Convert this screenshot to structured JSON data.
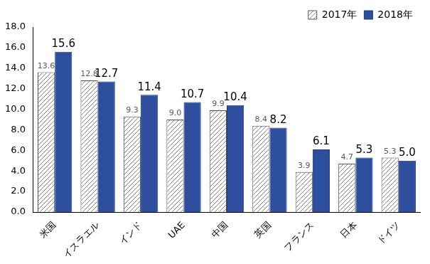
{
  "chart_data": {
    "type": "bar",
    "categories": [
      "米国",
      "イスラエル",
      "インド",
      "UAE",
      "中国",
      "英国",
      "フランス",
      "日本",
      "ドイツ"
    ],
    "series": [
      {
        "name": "2017年",
        "color": "#ffffff",
        "values": [
          13.6,
          12.8,
          9.3,
          9.0,
          9.9,
          8.4,
          3.9,
          4.7,
          5.3
        ],
        "value_labels": [
          "13.6",
          "12.8",
          "9.3",
          "9.0",
          "9.9",
          "8.4",
          "3.9",
          "4.7",
          "5.3"
        ]
      },
      {
        "name": "2018年",
        "color": "#2e4f9e",
        "values": [
          15.6,
          12.7,
          11.4,
          10.7,
          10.4,
          8.2,
          6.1,
          5.3,
          5.0
        ],
        "value_labels": [
          "15.6",
          "12.7",
          "11.4",
          "10.7",
          "10.4",
          "8.2",
          "6.1",
          "5.3",
          "5.0"
        ]
      }
    ],
    "ylim": [
      0,
      18
    ],
    "yticks": [
      {
        "value": 0,
        "label": "0.0"
      },
      {
        "value": 2,
        "label": "2.0"
      },
      {
        "value": 4,
        "label": "4.0"
      },
      {
        "value": 6,
        "label": "6.0"
      },
      {
        "value": 8,
        "label": "8.0"
      },
      {
        "value": 10,
        "label": "10.0"
      },
      {
        "value": 12,
        "label": "12.0"
      },
      {
        "value": 14,
        "label": "14.0"
      },
      {
        "value": 16,
        "label": "16.0"
      },
      {
        "value": 18,
        "label": "18.0"
      }
    ],
    "grid": false,
    "legend": "upper right",
    "data_labels": true
  }
}
